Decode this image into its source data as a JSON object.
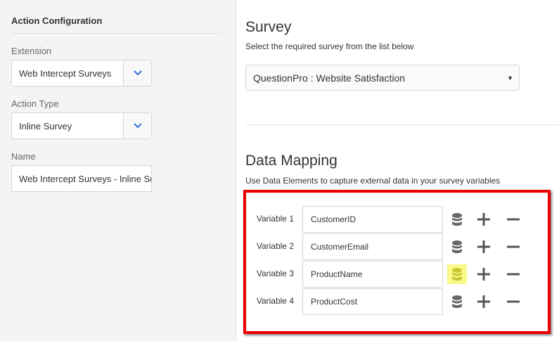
{
  "left": {
    "title": "Action Configuration",
    "extension": {
      "label": "Extension",
      "value": "Web Intercept Surveys"
    },
    "action_type": {
      "label": "Action Type",
      "value": "Inline Survey"
    },
    "name": {
      "label": "Name",
      "value": "Web Intercept Surveys - Inline Sur"
    }
  },
  "survey": {
    "title": "Survey",
    "subtitle": "Select the required survey from the list below",
    "selected": "QuestionPro : Website Satisfaction"
  },
  "mapping": {
    "title": "Data Mapping",
    "subtitle": "Use Data Elements to capture external data in your survey variables",
    "rows": [
      {
        "label": "Variable 1",
        "value": "CustomerID"
      },
      {
        "label": "Variable 2",
        "value": "CustomerEmail"
      },
      {
        "label": "Variable 3",
        "value": "ProductName",
        "highlighted": true
      },
      {
        "label": "Variable 4",
        "value": "ProductCost"
      }
    ]
  },
  "colors": {
    "accent": "#2d6ee0",
    "highlight_box": "#ee0000",
    "highlight_icon": "#fafa8c"
  }
}
